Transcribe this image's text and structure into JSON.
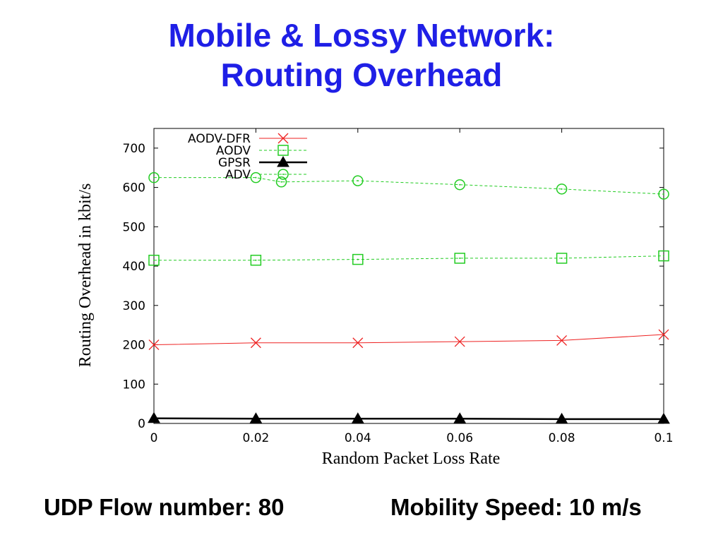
{
  "slide": {
    "title_line1": "Mobile & Lossy Network:",
    "title_line2": "Routing Overhead",
    "footer_left": "UDP Flow number: 80",
    "footer_right": "Mobility Speed: 10 m/s"
  },
  "chart_data": {
    "type": "line",
    "title": "",
    "xlabel": "Random Packet Loss Rate",
    "ylabel": "Routing Overhead in kbit/s",
    "xlim": [
      0,
      0.1
    ],
    "ylim": [
      0,
      750
    ],
    "xticks": [
      0,
      0.02,
      0.04,
      0.06,
      0.08,
      0.1
    ],
    "xtick_labels": [
      "0",
      "0.02",
      "0.04",
      "0.06",
      "0.08",
      "0.1"
    ],
    "yticks": [
      0,
      100,
      200,
      300,
      400,
      500,
      600,
      700
    ],
    "ytick_labels": [
      "0",
      "100",
      "200",
      "300",
      "400",
      "500",
      "600",
      "700"
    ],
    "grid": false,
    "legend_position": "top-left",
    "series": [
      {
        "name": "AODV-DFR",
        "color": "#ee2222",
        "marker": "x",
        "dash": "solid",
        "width": 1,
        "x": [
          0,
          0.02,
          0.04,
          0.06,
          0.08,
          0.1
        ],
        "y": [
          200,
          205,
          205,
          208,
          211,
          226
        ]
      },
      {
        "name": "AODV",
        "color": "#22cc22",
        "marker": "square",
        "dash": "dashed",
        "width": 1,
        "x": [
          0,
          0.02,
          0.04,
          0.06,
          0.08,
          0.1
        ],
        "y": [
          415,
          415,
          417,
          420,
          420,
          426
        ]
      },
      {
        "name": "GPSR",
        "color": "#000000",
        "marker": "triangle",
        "dash": "solid",
        "width": 2.5,
        "x": [
          0,
          0.02,
          0.04,
          0.06,
          0.08,
          0.1
        ],
        "y": [
          13,
          12,
          12,
          12,
          11,
          11
        ]
      },
      {
        "name": "ADV",
        "color": "#22cc22",
        "marker": "circle",
        "dash": "dashed",
        "width": 1,
        "x": [
          0,
          0.02,
          0.025,
          0.04,
          0.06,
          0.08,
          0.1
        ],
        "y": [
          625,
          625,
          614,
          617,
          607,
          596,
          583
        ]
      }
    ]
  }
}
